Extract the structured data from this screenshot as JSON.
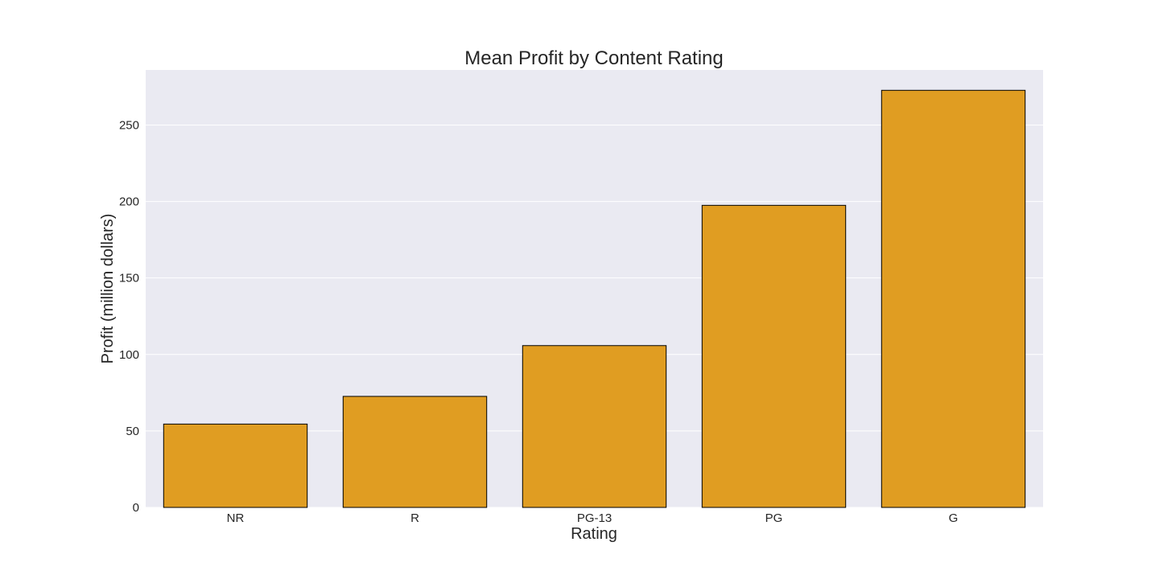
{
  "chart_data": {
    "type": "bar",
    "title": "Mean Profit by Content Rating",
    "xlabel": "Rating",
    "ylabel": "Profit (million dollars)",
    "categories": [
      "NR",
      "R",
      "PG-13",
      "PG",
      "G"
    ],
    "values": [
      54.5,
      72.6,
      105.8,
      197.5,
      272.7
    ],
    "ylim": [
      0,
      286
    ],
    "yticks": [
      0,
      50,
      100,
      150,
      200,
      250
    ],
    "grid": true,
    "legend": "none",
    "colors": {
      "bar": "#e09d22",
      "bar_edge": "#000000",
      "plot_background": "#eaeaf2",
      "grid": "#ffffff",
      "text": "#262626"
    }
  }
}
